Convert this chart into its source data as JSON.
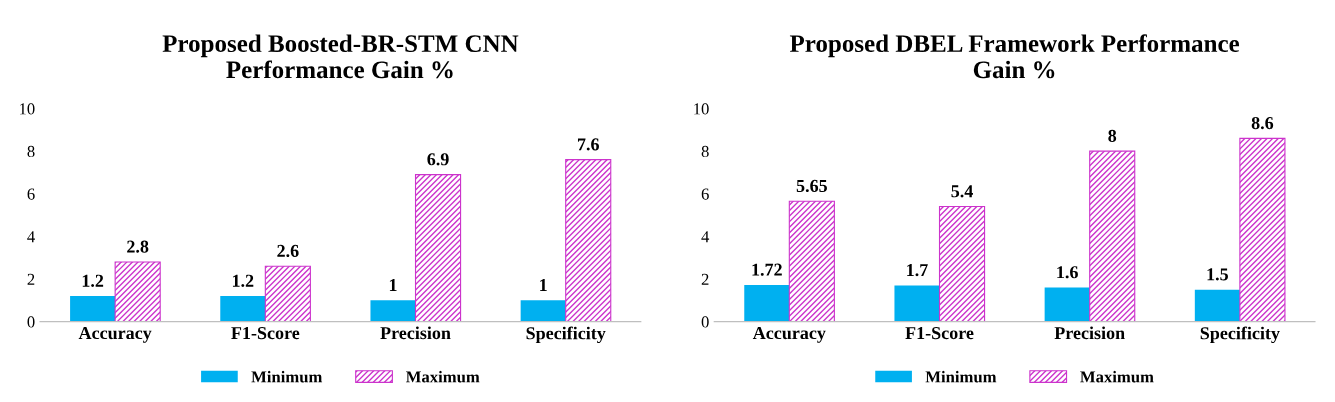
{
  "chart_data": [
    {
      "type": "bar",
      "title": "Proposed Boosted-BR-STM CNN\nPerformance Gain %",
      "categories": [
        "Accuracy",
        "F1-Score",
        "Precision",
        "Specificity"
      ],
      "series": [
        {
          "name": "Minimum",
          "color": "#00b0f0",
          "values": [
            1.2,
            1.2,
            1,
            1
          ]
        },
        {
          "name": "Maximum",
          "color": "#cc33cc",
          "values": [
            2.8,
            2.6,
            6.9,
            7.6
          ]
        }
      ],
      "ylim": [
        0,
        10
      ],
      "yticks": [
        0,
        2,
        4,
        6,
        8,
        10
      ],
      "grid": false,
      "legend": "bottom",
      "data_labels": true
    },
    {
      "type": "bar",
      "title": "Proposed DBEL Framework Performance\nGain %",
      "categories": [
        "Accuracy",
        "F1-Score",
        "Precision",
        "Specificity"
      ],
      "series": [
        {
          "name": "Minimum",
          "color": "#00b0f0",
          "values": [
            1.72,
            1.7,
            1.6,
            1.5
          ]
        },
        {
          "name": "Maximum",
          "color": "#cc33cc",
          "values": [
            5.65,
            5.4,
            8,
            8.6
          ]
        }
      ],
      "ylim": [
        0,
        10
      ],
      "yticks": [
        0,
        2,
        4,
        6,
        8,
        10
      ],
      "grid": false,
      "legend": "bottom",
      "data_labels": true
    }
  ]
}
